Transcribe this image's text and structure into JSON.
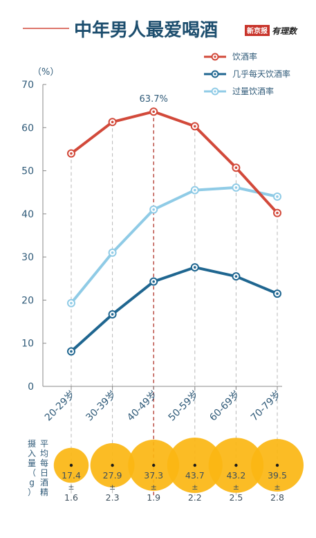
{
  "header": {
    "title": "中年男人最爱喝酒",
    "source_name": "新京报",
    "brand_name": "有理数"
  },
  "colors": {
    "drink_rate": "#d2493a",
    "daily_rate": "#1f6690",
    "heavy_rate": "#8fcbe6",
    "bubble": "#fbb612",
    "axis": "#888888",
    "title": "#1d4e6e",
    "text": "#2f5a78"
  },
  "chart_data": {
    "type": "line",
    "y_unit_label": "（%）",
    "ylim": [
      0,
      70
    ],
    "yticks": [
      "0",
      "10",
      "20",
      "30",
      "40",
      "50",
      "60",
      "70"
    ],
    "categories": [
      "20-29岁",
      "30-39岁",
      "40-49岁",
      "50-59岁",
      "60-69岁",
      "70-79岁"
    ],
    "series": [
      {
        "name": "饮酒率",
        "key": "drink_rate",
        "values": [
          54.0,
          61.3,
          63.7,
          60.3,
          50.7,
          40.2
        ]
      },
      {
        "name": "几乎每天饮酒率",
        "key": "daily_rate",
        "values": [
          8.1,
          16.7,
          24.3,
          27.6,
          25.5,
          21.5
        ]
      },
      {
        "name": "过量饮酒率",
        "key": "heavy_rate",
        "values": [
          19.3,
          31.0,
          41.0,
          45.5,
          46.1,
          44.0
        ]
      }
    ],
    "annotation": {
      "label": "63.7%",
      "category_index": 2
    },
    "grid": "vertical-dashed",
    "legend_position": "top-right"
  },
  "intake": {
    "label": "平均每日酒精摄入量（g）",
    "values": [
      {
        "mean": "17.4",
        "pm": "±",
        "sd": "1.6"
      },
      {
        "mean": "27.9",
        "pm": "±",
        "sd": "2.3"
      },
      {
        "mean": "37.3",
        "pm": "±",
        "sd": "1.9"
      },
      {
        "mean": "43.7",
        "pm": "±",
        "sd": "2.2"
      },
      {
        "mean": "43.2",
        "pm": "±",
        "sd": "2.5"
      },
      {
        "mean": "39.5",
        "pm": "±",
        "sd": "2.8"
      }
    ]
  }
}
